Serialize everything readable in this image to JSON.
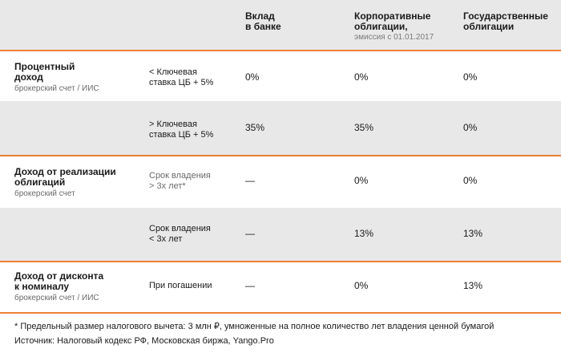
{
  "header": {
    "col1": "Вклад\nв банке",
    "col2": "Корпоративные\nоблигации,",
    "col2_sub": "эмиссия с 01.01.2017",
    "col3": "Государственные\nоблигации"
  },
  "rows": [
    {
      "title": "Процентный\nдоход",
      "subtitle": "брокерский счет / ИИС",
      "condition": "< Ключевая\nставка ЦБ + 5%",
      "values": [
        "0%",
        "0%",
        "0%"
      ]
    },
    {
      "title": "",
      "subtitle": "",
      "condition": "> Ключевая\nставка ЦБ + 5%",
      "values": [
        "35%",
        "35%",
        "0%"
      ]
    },
    {
      "title": "Доход от реализации\nоблигаций",
      "subtitle": "брокерский счет",
      "condition": "Срок владения\n> 3х лет*",
      "values": [
        "—",
        "0%",
        "0%"
      ]
    },
    {
      "title": "",
      "subtitle": "",
      "condition": "Срок владения\n< 3х лет",
      "values": [
        "—",
        "13%",
        "13%"
      ]
    },
    {
      "title": "Доход от дисконта\nк номиналу",
      "subtitle": "брокерский счет / ИИС",
      "condition": "При погашении",
      "values": [
        "—",
        "0%",
        "13%"
      ]
    }
  ],
  "footer": {
    "note": "* Предельный размер налогового вычета: 3 млн ₽, умноженные на полное количество лет владения ценной бумагой",
    "source": "Источник: Налоговый кодекс РФ, Московская биржа, Yango.Pro"
  },
  "colors": {
    "accent": "#ee7e35",
    "shade": "#e8e8e8"
  }
}
